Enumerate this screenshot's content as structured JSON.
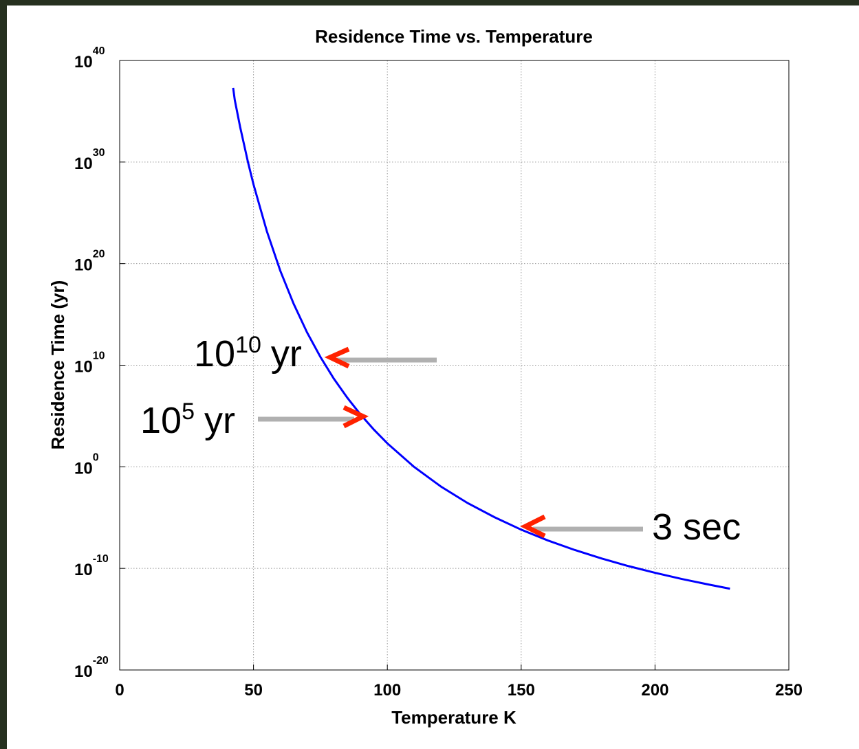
{
  "chart_data": {
    "type": "line",
    "title": "Residence Time vs. Temperature",
    "x_label": "Temperature K",
    "y_label": "Residence Time (yr)",
    "x": [
      42.4,
      43,
      45,
      48,
      50,
      55,
      60,
      65,
      70,
      75,
      80,
      85,
      90,
      95,
      100,
      110,
      120,
      130,
      140,
      150,
      160,
      170,
      180,
      190,
      200,
      210,
      220,
      228
    ],
    "series": [
      {
        "name": "Residence time",
        "color": "#0000ff",
        "values": [
          2e+37,
          1.3e+36,
          2.9e+33,
          8.3e+29,
          6.3e+27,
          1.5e+23,
          2e+19,
          1.1e+16,
          17000000000000.0,
          65000000000.0,
          480000000.0,
          6500000.0,
          140000.0,
          4500.0,
          204,
          0.98,
          0.0115,
          0.00027,
          1.1e-05,
          6.5e-07,
          5.6e-08,
          6.5e-09,
          9.5e-10,
          1.7e-10,
          3.7e-11,
          9.1e-12,
          2.6e-12,
          1e-12
        ]
      }
    ],
    "xlim": [
      0,
      250
    ],
    "xticks": [
      0,
      50,
      100,
      150,
      200,
      250
    ],
    "ylim": [
      1e-20,
      1e+40
    ],
    "log_y": true,
    "grid": true,
    "yticks": [
      {
        "value": 1e-20,
        "label": "10",
        "exponent": "-20"
      },
      {
        "value": 1e-10,
        "label": "10",
        "exponent": "-10"
      },
      {
        "value": 1,
        "label": "10",
        "exponent": "0"
      },
      {
        "value": 10000000000.0,
        "label": "10",
        "exponent": "10"
      },
      {
        "value": 1e+20,
        "label": "10",
        "exponent": "20"
      },
      {
        "value": 1e+30,
        "label": "10",
        "exponent": "30"
      },
      {
        "value": 1e+40,
        "label": "10",
        "exponent": "40"
      }
    ],
    "annotations": [
      {
        "base": "10",
        "exponent": "10",
        "suffix": "yr"
      },
      {
        "base": "10",
        "exponent": "5",
        "suffix": "yr"
      },
      {
        "text": "3 sec"
      }
    ]
  }
}
